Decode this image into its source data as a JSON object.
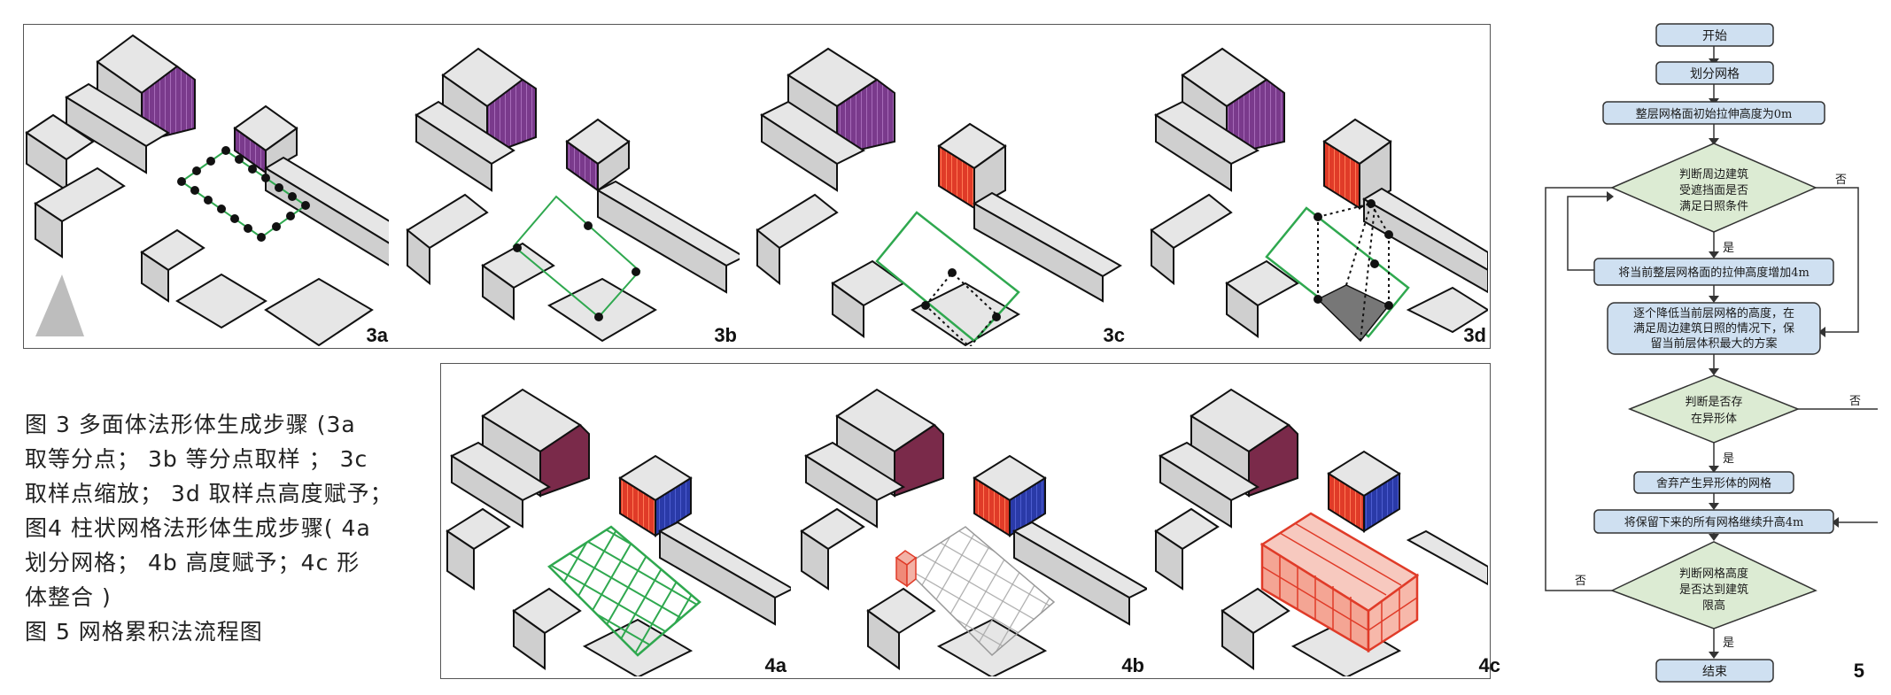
{
  "panels_top": [
    {
      "label": "3a"
    },
    {
      "label": "3b"
    },
    {
      "label": "3c"
    },
    {
      "label": "3d"
    }
  ],
  "panels_bottom": [
    {
      "label": "4a"
    },
    {
      "label": "4b"
    },
    {
      "label": "4c"
    }
  ],
  "caption": {
    "lines": [
      "图 3 多面体法形体生成步骤 (3a",
      "取等分点； 3b 等分点取样 ； 3c",
      "取样点缩放； 3d 取样点高度赋予；",
      "图4 柱状网格法形体生成步骤( 4a",
      "划分网格； 4b 高度赋予；4c 形",
      "体整合 )",
      "图 5 网格累积法流程图"
    ]
  },
  "flowchart": {
    "start": "开始",
    "divide": "划分网格",
    "init": "整层网格面初始拉伸高度为0m",
    "judge1": [
      "判断周边建筑",
      "受遮挡面是否",
      "满足日照条件"
    ],
    "yes": "是",
    "no": "否",
    "increase": "将当前整层网格面的拉伸高度增加4m",
    "reduce": [
      "逐个降低当前层网格的高度，在",
      "满足周边建筑日照的情况下，保",
      "留当前层体积最大的方案"
    ],
    "judge2": [
      "判断是否存",
      "在异形体"
    ],
    "discard": "舍弃产生异形体的网格",
    "raise": "将保留下来的所有网格继续升高4m",
    "judge3": [
      "判断网格高度",
      "是否达到建筑",
      "限高"
    ],
    "end": "结束",
    "figure_number": "5"
  },
  "colors": {
    "box_fill": "#cfe0f1",
    "diamond_fill": "#dcebd3",
    "green_outline": "#2fa84f",
    "red_block": "#e03b28",
    "purple_facade": "#7a3a8c",
    "blue_facade": "#2a3aa8"
  }
}
